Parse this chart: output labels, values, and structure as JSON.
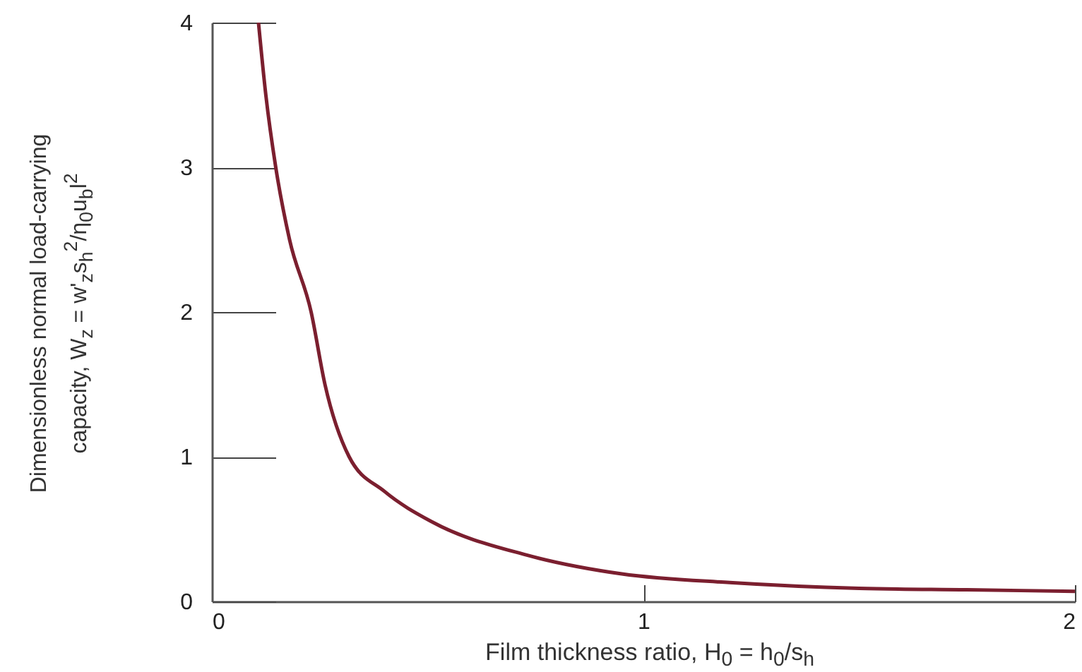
{
  "chart_data": {
    "type": "line",
    "xlabel": "Film thickness ratio,  H$_{0}$ = h$_{0}$/s$_{h}$",
    "ylabel": "Dimensionless normal load-carrying\ncapacity, W$_{z}$ = w'$_{z}$s$_{h}$$^{2}$/η$_{0}$u$_{b}$l$^{2}$",
    "x": [
      0.108,
      0.125,
      0.148,
      0.18,
      0.23,
      0.262,
      0.318,
      0.4,
      0.51,
      0.73,
      0.95,
      1.2,
      1.5,
      1.75,
      2.0
    ],
    "series": [
      {
        "color": "#7b1f2f",
        "values": [
          4.0,
          3.5,
          3.0,
          2.5,
          2.0,
          1.5,
          1.0,
          0.76,
          0.55,
          0.32,
          0.19,
          0.13,
          0.09,
          0.08,
          0.07
        ]
      }
    ],
    "xlim": [
      0,
      2
    ],
    "ylim": [
      0,
      4
    ],
    "xticks": [
      0,
      1,
      2
    ],
    "yticks": [
      0,
      1,
      2,
      3,
      4
    ],
    "grid": false,
    "marker": "none",
    "line_style": "solid"
  }
}
